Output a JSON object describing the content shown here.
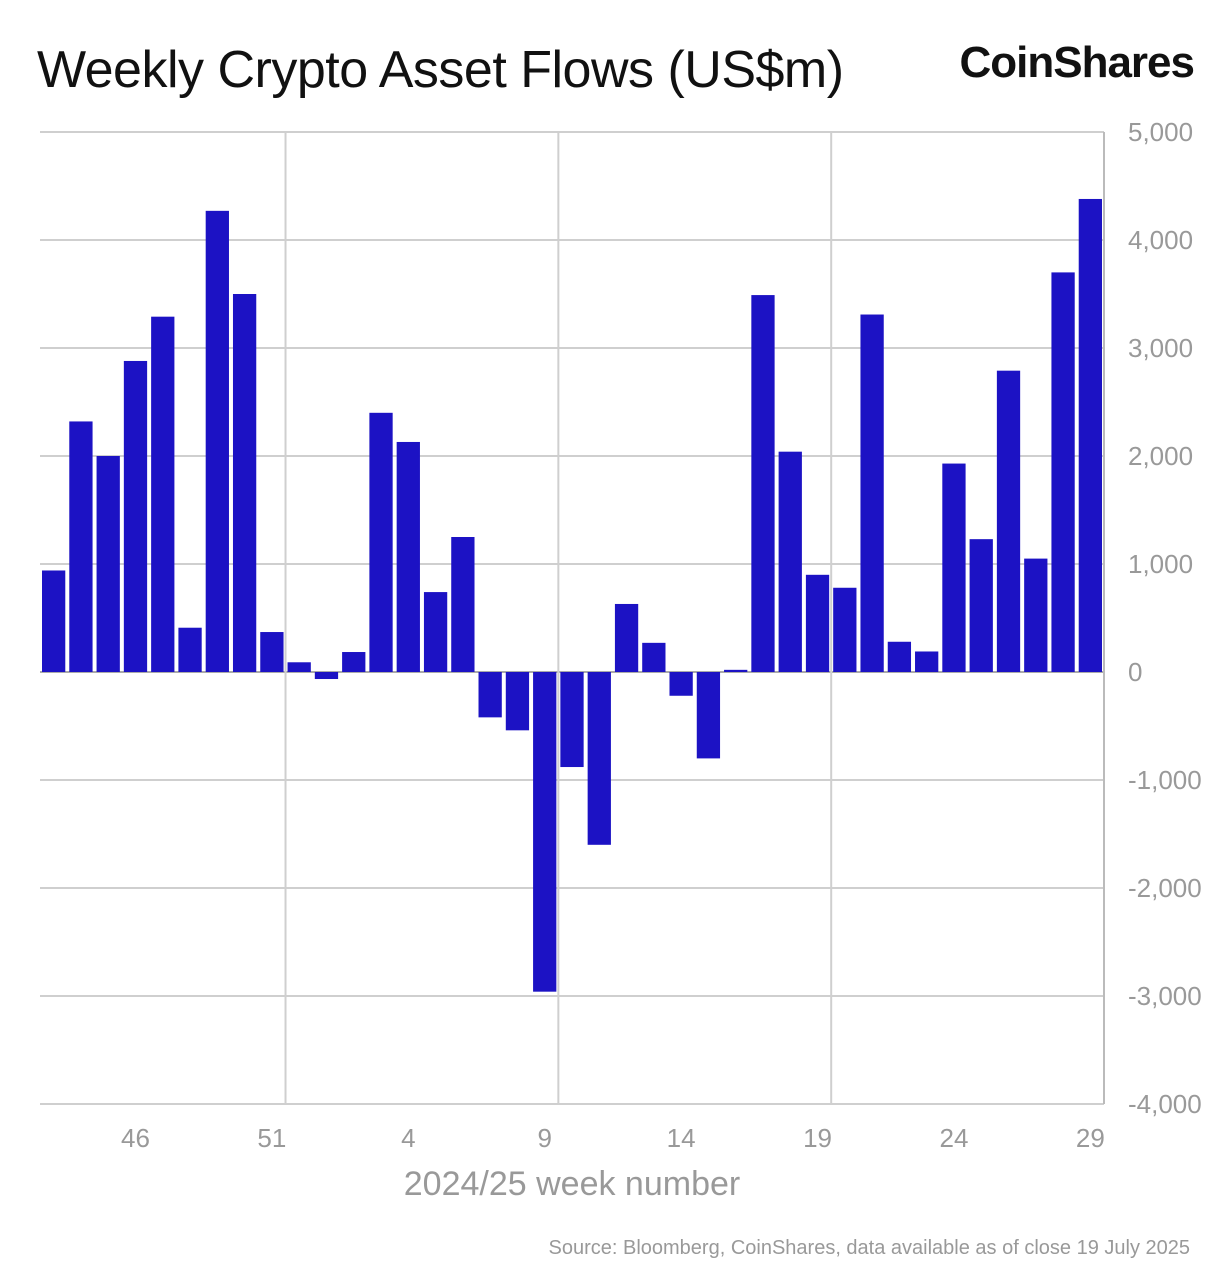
{
  "chart_data": {
    "type": "bar",
    "title": "Weekly Crypto Asset Flows (US$m)",
    "xlabel": "2024/25 week number",
    "ylabel": "",
    "ylim": [
      -4000,
      5000
    ],
    "yticks": [
      5000,
      4000,
      3000,
      2000,
      1000,
      0,
      -1000,
      -2000,
      -3000,
      -4000
    ],
    "ytick_labels": [
      "5,000",
      "4,000",
      "3,000",
      "2,000",
      "1,000",
      "0",
      "-1,000",
      "-2,000",
      "-3,000",
      "-4,000"
    ],
    "y_axis_position": "right",
    "grid": true,
    "bar_color": "#1c12c4",
    "categories": [
      "43",
      "44",
      "45",
      "46",
      "47",
      "48",
      "49",
      "50",
      "51",
      "52",
      "1",
      "2",
      "3",
      "4",
      "5",
      "6",
      "7",
      "8",
      "9",
      "10",
      "11",
      "12",
      "13",
      "14",
      "15",
      "16",
      "17",
      "18",
      "19",
      "20",
      "21",
      "22",
      "23",
      "24",
      "25",
      "26",
      "27",
      "28",
      "29"
    ],
    "values": [
      940,
      2320,
      2000,
      2880,
      3290,
      410,
      4270,
      3500,
      370,
      90,
      -65,
      185,
      2400,
      2130,
      740,
      1250,
      -420,
      -540,
      -2960,
      -880,
      -1600,
      630,
      270,
      -220,
      -800,
      20,
      3490,
      2040,
      900,
      780,
      3310,
      280,
      190,
      1930,
      1230,
      2790,
      1050,
      3700,
      4380
    ],
    "xtick_labels": [
      "46",
      "51",
      "4",
      "9",
      "14",
      "19",
      "24",
      "29"
    ]
  },
  "logo_text": "CoinShares",
  "source": "Source: Bloomberg, CoinShares, data available as of close 19 July 2025"
}
